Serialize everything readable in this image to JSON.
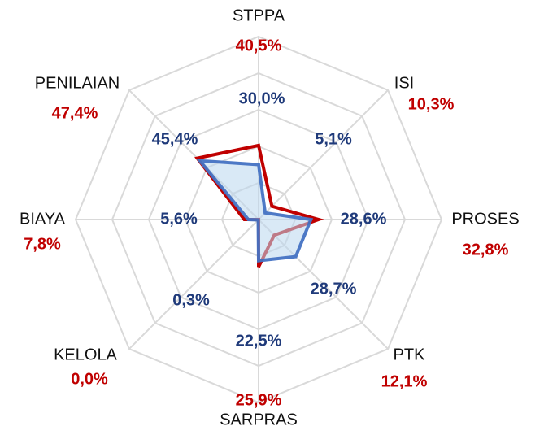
{
  "chart_data": {
    "type": "radar",
    "categories": [
      "STPPA",
      "ISI",
      "PROSES",
      "PTK",
      "SARPRAS",
      "KELOLA",
      "BIAYA",
      "PENILAIAN"
    ],
    "series": [
      {
        "color": "#c00000",
        "values": [
          40.5,
          10.3,
          32.8,
          12.1,
          25.9,
          0.0,
          7.8,
          47.4
        ],
        "value_labels": [
          "40,5%",
          "10,3%",
          "32,8%",
          "12,1%",
          "25,9%",
          "0,0%",
          "7,8%",
          "47,4%"
        ]
      },
      {
        "color": "#4472c4",
        "values": [
          30.0,
          5.1,
          28.6,
          28.7,
          22.5,
          0.3,
          5.6,
          45.4
        ],
        "value_labels": [
          "30,0%",
          "5,1%",
          "28,6%",
          "28,7%",
          "22,5%",
          "0,3%",
          "5,6%",
          "45,4%"
        ]
      }
    ],
    "ylim": [
      0,
      100
    ],
    "yticks": [
      0,
      20,
      40,
      60,
      80,
      100
    ],
    "grid": true
  }
}
